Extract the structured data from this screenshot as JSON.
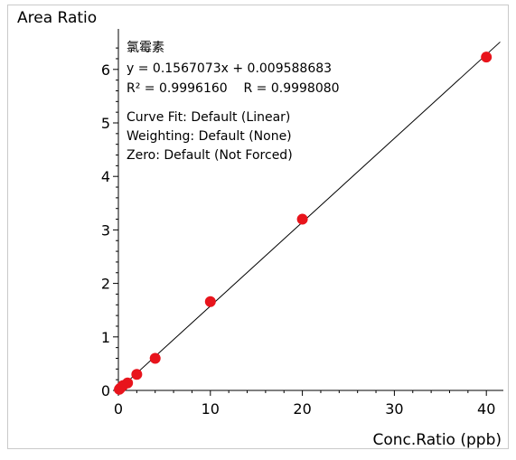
{
  "chart_data": {
    "type": "scatter",
    "ylabel": "Area Ratio",
    "xlabel": "Conc.Ratio (ppb)",
    "xlim": [
      0,
      41.5
    ],
    "ylim": [
      0,
      6.55
    ],
    "xticks": [
      0,
      10,
      20,
      30,
      40
    ],
    "yticks": [
      0,
      1,
      2,
      3,
      4,
      5,
      6
    ],
    "x_tick_labels": [
      "0",
      "10",
      "20",
      "30",
      "40"
    ],
    "y_tick_labels": [
      "0",
      "1",
      "2",
      "3",
      "4",
      "5",
      "6"
    ],
    "points": {
      "x": [
        0.1,
        0.2,
        0.5,
        1.0,
        2.0,
        4.0,
        10.0,
        20.0,
        40.0
      ],
      "y": [
        0.02,
        0.04,
        0.09,
        0.14,
        0.3,
        0.6,
        1.66,
        3.2,
        6.23
      ]
    },
    "fit": {
      "slope": 0.1567073,
      "intercept": 0.009588683
    },
    "annotations": [
      "氯霉素",
      "y = 0.1567073x + 0.009588683",
      "R² = 0.9996160    R = 0.9998080",
      "Curve Fit: Default (Linear)",
      "Weighting: Default (None)",
      "Zero: Default (Not Forced)"
    ],
    "grid": false,
    "point_color": "#e8141c",
    "line_color": "#000000"
  }
}
